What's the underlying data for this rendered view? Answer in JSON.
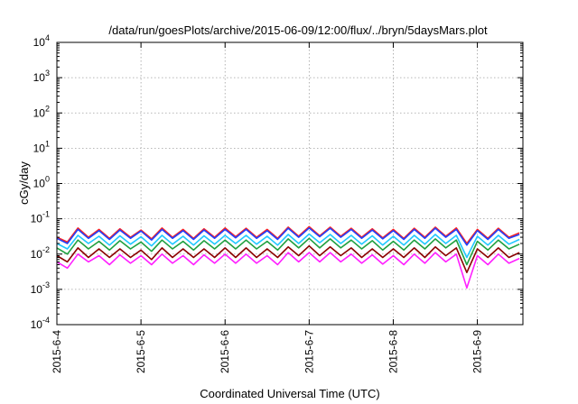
{
  "chart_data": {
    "type": "line",
    "title": "/data/run/goesPlots/archive/2015-06-09/12:00/flux/../bryn/5daysMars.plot",
    "xlabel": "Coordinated Universal Time (UTC)",
    "ylabel": "cGy/day",
    "yscale": "log",
    "ylim": [
      0.0001,
      10000
    ],
    "xlim": [
      "2015-06-04T00:00",
      "2015-06-09T13:00"
    ],
    "grid": true,
    "legend": "none",
    "x_tick_labels": [
      "2015-6-4",
      "2015-6-5",
      "2015-6-6",
      "2015-6-7",
      "2015-6-8",
      "2015-6-9"
    ],
    "y_ticks": [
      {
        "base": "10",
        "exp": "-4"
      },
      {
        "base": "10",
        "exp": "-3"
      },
      {
        "base": "10",
        "exp": "-2"
      },
      {
        "base": "10",
        "exp": "-1"
      },
      {
        "base": "10",
        "exp": "0"
      },
      {
        "base": "10",
        "exp": "1"
      },
      {
        "base": "10",
        "exp": "2"
      },
      {
        "base": "10",
        "exp": "3"
      },
      {
        "base": "10",
        "exp": "4"
      }
    ],
    "x": [
      "2015-06-04T00:00",
      "2015-06-04T03:00",
      "2015-06-04T06:00",
      "2015-06-04T09:00",
      "2015-06-04T12:00",
      "2015-06-04T15:00",
      "2015-06-04T18:00",
      "2015-06-04T21:00",
      "2015-06-05T00:00",
      "2015-06-05T03:00",
      "2015-06-05T06:00",
      "2015-06-05T09:00",
      "2015-06-05T12:00",
      "2015-06-05T15:00",
      "2015-06-05T18:00",
      "2015-06-05T21:00",
      "2015-06-06T00:00",
      "2015-06-06T03:00",
      "2015-06-06T06:00",
      "2015-06-06T09:00",
      "2015-06-06T12:00",
      "2015-06-06T15:00",
      "2015-06-06T18:00",
      "2015-06-06T21:00",
      "2015-06-07T00:00",
      "2015-06-07T03:00",
      "2015-06-07T06:00",
      "2015-06-07T09:00",
      "2015-06-07T12:00",
      "2015-06-07T15:00",
      "2015-06-07T18:00",
      "2015-06-07T21:00",
      "2015-06-08T00:00",
      "2015-06-08T03:00",
      "2015-06-08T06:00",
      "2015-06-08T09:00",
      "2015-06-08T12:00",
      "2015-06-08T15:00",
      "2015-06-08T18:00",
      "2015-06-08T21:00",
      "2015-06-09T00:00",
      "2015-06-09T03:00",
      "2015-06-09T06:00",
      "2015-06-09T09:00",
      "2015-06-09T12:00"
    ],
    "series": [
      {
        "color": "#ff2020",
        "values": [
          0.03,
          0.022,
          0.055,
          0.03,
          0.05,
          0.028,
          0.052,
          0.03,
          0.048,
          0.027,
          0.055,
          0.03,
          0.05,
          0.028,
          0.052,
          0.03,
          0.055,
          0.031,
          0.054,
          0.03,
          0.05,
          0.028,
          0.058,
          0.032,
          0.06,
          0.033,
          0.058,
          0.032,
          0.054,
          0.03,
          0.052,
          0.029,
          0.05,
          0.028,
          0.054,
          0.03,
          0.058,
          0.032,
          0.055,
          0.02,
          0.05,
          0.028,
          0.054,
          0.03,
          0.04
        ]
      },
      {
        "color": "#2040ff",
        "values": [
          0.028,
          0.02,
          0.05,
          0.028,
          0.046,
          0.026,
          0.048,
          0.028,
          0.045,
          0.025,
          0.05,
          0.028,
          0.046,
          0.026,
          0.048,
          0.028,
          0.05,
          0.029,
          0.05,
          0.028,
          0.046,
          0.026,
          0.054,
          0.03,
          0.055,
          0.031,
          0.054,
          0.03,
          0.05,
          0.028,
          0.048,
          0.027,
          0.046,
          0.026,
          0.05,
          0.028,
          0.054,
          0.03,
          0.05,
          0.018,
          0.046,
          0.026,
          0.05,
          0.028,
          0.036
        ]
      },
      {
        "color": "#20c8ff",
        "values": [
          0.02,
          0.014,
          0.034,
          0.02,
          0.032,
          0.018,
          0.033,
          0.019,
          0.031,
          0.017,
          0.034,
          0.019,
          0.032,
          0.018,
          0.033,
          0.019,
          0.034,
          0.02,
          0.034,
          0.019,
          0.032,
          0.018,
          0.036,
          0.02,
          0.037,
          0.021,
          0.036,
          0.02,
          0.034,
          0.019,
          0.033,
          0.018,
          0.032,
          0.018,
          0.034,
          0.019,
          0.036,
          0.02,
          0.034,
          0.008,
          0.032,
          0.018,
          0.034,
          0.019,
          0.026
        ]
      },
      {
        "color": "#20a040",
        "values": [
          0.015,
          0.01,
          0.025,
          0.014,
          0.023,
          0.013,
          0.024,
          0.014,
          0.022,
          0.012,
          0.025,
          0.014,
          0.023,
          0.013,
          0.024,
          0.014,
          0.025,
          0.014,
          0.025,
          0.014,
          0.023,
          0.013,
          0.027,
          0.015,
          0.028,
          0.015,
          0.027,
          0.015,
          0.025,
          0.014,
          0.024,
          0.013,
          0.023,
          0.013,
          0.025,
          0.014,
          0.027,
          0.015,
          0.025,
          0.005,
          0.023,
          0.013,
          0.025,
          0.014,
          0.019
        ]
      },
      {
        "color": "#8b0000",
        "values": [
          0.009,
          0.006,
          0.015,
          0.008,
          0.014,
          0.008,
          0.014,
          0.008,
          0.013,
          0.007,
          0.015,
          0.008,
          0.014,
          0.008,
          0.014,
          0.008,
          0.015,
          0.008,
          0.015,
          0.008,
          0.014,
          0.008,
          0.016,
          0.009,
          0.017,
          0.009,
          0.016,
          0.009,
          0.015,
          0.008,
          0.014,
          0.008,
          0.014,
          0.008,
          0.015,
          0.008,
          0.016,
          0.009,
          0.015,
          0.003,
          0.014,
          0.008,
          0.015,
          0.008,
          0.011
        ]
      },
      {
        "color": "#ff20ff",
        "values": [
          0.006,
          0.004,
          0.01,
          0.006,
          0.009,
          0.005,
          0.0095,
          0.0055,
          0.009,
          0.005,
          0.01,
          0.0055,
          0.009,
          0.005,
          0.0095,
          0.0055,
          0.01,
          0.0055,
          0.01,
          0.0055,
          0.009,
          0.005,
          0.011,
          0.006,
          0.011,
          0.006,
          0.011,
          0.006,
          0.01,
          0.0055,
          0.0095,
          0.0052,
          0.009,
          0.005,
          0.01,
          0.0055,
          0.011,
          0.006,
          0.01,
          0.0011,
          0.009,
          0.005,
          0.01,
          0.0055,
          0.0075
        ]
      }
    ]
  }
}
